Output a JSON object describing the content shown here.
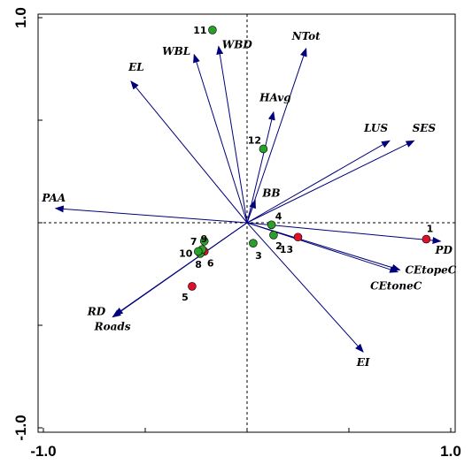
{
  "chart_data": {
    "type": "scatter",
    "title": "",
    "xlabel": "",
    "ylabel": "",
    "xlim": [
      -1.0,
      1.0
    ],
    "ylim": [
      -1.0,
      1.0
    ],
    "x_ticks": [
      {
        "value": -1.0,
        "label": "-1.0"
      },
      {
        "value": 1.0,
        "label": "1.0"
      }
    ],
    "y_ticks": [
      {
        "value": 1.0,
        "label": "1.0"
      },
      {
        "value": -1.0,
        "label": "-1.0"
      }
    ],
    "reference_lines": {
      "x": 0,
      "y": 0,
      "style": "dashed"
    },
    "vector_color": "#00007a",
    "vectors": [
      {
        "name": "WBD",
        "x": -0.14,
        "y": 0.86
      },
      {
        "name": "WBL",
        "x": -0.26,
        "y": 0.82
      },
      {
        "name": "NTot",
        "x": 0.29,
        "y": 0.85
      },
      {
        "name": "EL",
        "x": -0.57,
        "y": 0.69
      },
      {
        "name": "HAvg",
        "x": 0.13,
        "y": 0.54
      },
      {
        "name": "LUS",
        "x": 0.7,
        "y": 0.4
      },
      {
        "name": "SES",
        "x": 0.82,
        "y": 0.4
      },
      {
        "name": "PAA",
        "x": -0.94,
        "y": 0.07
      },
      {
        "name": "BB",
        "x": 0.04,
        "y": 0.11
      },
      {
        "name": "PD",
        "x": 0.95,
        "y": -0.09
      },
      {
        "name": "CEtopeC",
        "x": 0.75,
        "y": -0.23
      },
      {
        "name": "CEtoneC",
        "x": 0.74,
        "y": -0.24
      },
      {
        "name": "EI",
        "x": 0.57,
        "y": -0.63
      },
      {
        "name": "RD",
        "x": -0.66,
        "y": -0.46
      },
      {
        "name": "Roads",
        "x": -0.65,
        "y": -0.45
      }
    ],
    "point_colors": {
      "green": "#2aa02a",
      "red": "#e0102a"
    },
    "points": [
      {
        "label": "1",
        "x": 0.88,
        "y": -0.08,
        "color": "red"
      },
      {
        "label": "2",
        "x": 0.13,
        "y": -0.06,
        "color": "green"
      },
      {
        "label": "3",
        "x": 0.03,
        "y": -0.1,
        "color": "green"
      },
      {
        "label": "4",
        "x": 0.12,
        "y": -0.01,
        "color": "green"
      },
      {
        "label": "5",
        "x": -0.27,
        "y": -0.31,
        "color": "red"
      },
      {
        "label": "6",
        "x": -0.21,
        "y": -0.14,
        "color": "red"
      },
      {
        "label": "7",
        "x": -0.21,
        "y": -0.09,
        "color": "green"
      },
      {
        "label": "8",
        "x": -0.23,
        "y": -0.15,
        "color": "green"
      },
      {
        "label": "9",
        "x": -0.22,
        "y": -0.13,
        "color": "green"
      },
      {
        "label": "10",
        "x": -0.24,
        "y": -0.14,
        "color": "green"
      },
      {
        "label": "11",
        "x": -0.17,
        "y": 0.94,
        "color": "green"
      },
      {
        "label": "12",
        "x": 0.08,
        "y": 0.36,
        "color": "green"
      },
      {
        "label": "13",
        "x": 0.25,
        "y": -0.07,
        "color": "red"
      }
    ]
  }
}
